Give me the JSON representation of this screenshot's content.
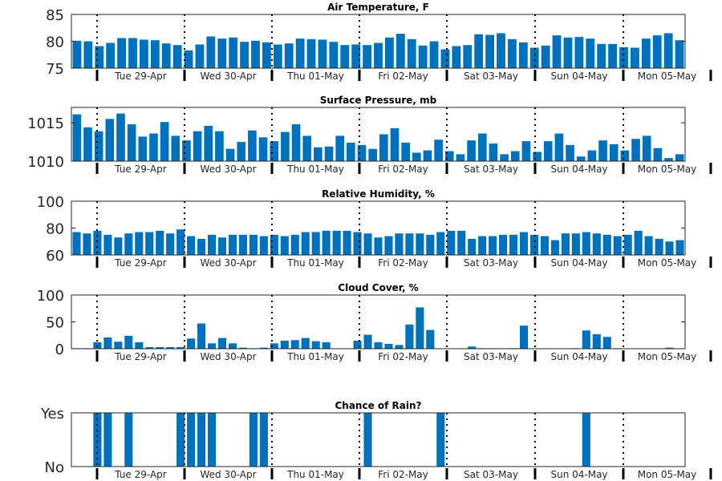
{
  "chart_data": [
    {
      "type": "bar",
      "title": "Air Temperature, F",
      "ylim": [
        75,
        85
      ],
      "yticks": [
        75,
        80,
        85
      ],
      "ytick_labels": [
        "75",
        "80",
        "85"
      ],
      "xtick_labels": [
        "Tue 29-Apr",
        "Wed 30-Apr",
        "Thu 01-May",
        "Fri 02-May",
        "Sat 03-May",
        "Sun 04-May",
        "Mon 05-May"
      ],
      "values": [
        80.1,
        80.0,
        79.1,
        79.7,
        80.6,
        80.6,
        80.3,
        80.2,
        79.6,
        79.3,
        78.3,
        79.4,
        80.9,
        80.5,
        80.7,
        79.9,
        80.1,
        79.8,
        79.4,
        79.6,
        80.5,
        80.4,
        80.3,
        79.9,
        79.3,
        79.4,
        79.3,
        79.7,
        80.7,
        81.4,
        80.4,
        79.2,
        80.0,
        78.5,
        79.1,
        79.3,
        81.3,
        81.2,
        81.5,
        80.4,
        79.8,
        78.8,
        79.2,
        81.1,
        80.7,
        80.8,
        80.5,
        79.5,
        79.5,
        78.9,
        78.8,
        80.5,
        81.1,
        81.5,
        80.2
      ],
      "grid": false
    },
    {
      "type": "bar",
      "title": "Surface Pressure, mb",
      "ylim": [
        1010,
        1017
      ],
      "yticks": [
        1010,
        1015
      ],
      "ytick_labels": [
        "1010",
        "1015"
      ],
      "xtick_labels": [
        "Tue 29-Apr",
        "Wed 30-Apr",
        "Thu 01-May",
        "Fri 02-May",
        "Sat 03-May",
        "Sun 04-May",
        "Mon 05-May"
      ],
      "values": [
        1016.1,
        1014.4,
        1013.9,
        1015.5,
        1016.2,
        1014.8,
        1013.2,
        1013.6,
        1015.1,
        1013.3,
        1012.7,
        1013.9,
        1014.6,
        1013.9,
        1011.6,
        1012.5,
        1014.0,
        1013.1,
        1012.6,
        1013.8,
        1014.8,
        1013.3,
        1011.8,
        1011.9,
        1013.3,
        1012.4,
        1012.1,
        1011.6,
        1013.5,
        1014.3,
        1012.4,
        1011.1,
        1011.4,
        1012.8,
        1011.3,
        1010.9,
        1012.7,
        1013.6,
        1012.3,
        1010.9,
        1011.3,
        1012.6,
        1011.2,
        1012.6,
        1013.6,
        1012.1,
        1010.6,
        1011.4,
        1012.7,
        1012.2,
        1011.4,
        1012.9,
        1013.3,
        1011.7,
        1010.4,
        1010.9
      ],
      "grid": false
    },
    {
      "type": "bar",
      "title": "Relative Humidity, %",
      "ylim": [
        60,
        100
      ],
      "yticks": [
        60,
        80,
        100
      ],
      "ytick_labels": [
        "60",
        "80",
        "100"
      ],
      "xtick_labels": [
        "Tue 29-Apr",
        "Wed 30-Apr",
        "Thu 01-May",
        "Fri 02-May",
        "Sat 03-May",
        "Sun 04-May",
        "Mon 05-May"
      ],
      "values": [
        77,
        76,
        78,
        75,
        73,
        76,
        77,
        77,
        78,
        76,
        79,
        74,
        72,
        75,
        73,
        75,
        75,
        75,
        74,
        75,
        74,
        75,
        77,
        77,
        78,
        78,
        78,
        77,
        76,
        73,
        74,
        76,
        76,
        76,
        75,
        77,
        78,
        78,
        72,
        74,
        74,
        75,
        75,
        77,
        75,
        74,
        71,
        76,
        76,
        77,
        76,
        75,
        74,
        75,
        78,
        74,
        72,
        70,
        71
      ],
      "grid": false
    },
    {
      "type": "bar",
      "title": "Cloud Cover, %",
      "ylim": [
        0,
        100
      ],
      "yticks": [
        0,
        50,
        100
      ],
      "ytick_labels": [
        "0",
        "50",
        "100"
      ],
      "xtick_labels": [
        "Tue 29-Apr",
        "Wed 30-Apr",
        "Thu 01-May",
        "Fri 02-May",
        "Sat 03-May",
        "Sun 04-May",
        "Mon 05-May"
      ],
      "values": [
        1,
        1,
        12,
        21,
        13,
        24,
        12,
        3,
        3,
        3,
        3,
        19,
        47,
        10,
        20,
        10,
        2,
        1,
        2,
        10,
        15,
        16,
        20,
        14,
        12,
        0,
        0,
        15,
        26,
        12,
        9,
        7,
        45,
        77,
        35,
        0,
        0,
        0,
        4,
        1,
        1,
        0,
        1,
        43,
        0,
        0,
        0,
        0,
        1,
        34,
        27,
        22,
        1,
        0,
        0,
        0,
        0,
        2,
        0
      ],
      "grid": false
    },
    {
      "type": "bar",
      "title": "Chance of Rain?",
      "ylim": [
        0,
        1
      ],
      "yticks": [
        0,
        1
      ],
      "ytick_labels": [
        "No",
        "Yes"
      ],
      "xtick_labels": [
        "Tue 29-Apr",
        "Wed 30-Apr",
        "Thu 01-May",
        "Fri 02-May",
        "Sat 03-May",
        "Sun 04-May",
        "Mon 05-May"
      ],
      "values": [
        0,
        0,
        1,
        1,
        0,
        1,
        0,
        0,
        0,
        0,
        1,
        1,
        1,
        1,
        0,
        0,
        0,
        1,
        1,
        0,
        0,
        0,
        0,
        0,
        0,
        0,
        0,
        0,
        1,
        0,
        0,
        0,
        0,
        0,
        0,
        1,
        0,
        0,
        0,
        0,
        0,
        0,
        0,
        0,
        0,
        0,
        0,
        0,
        0,
        1,
        0,
        0,
        0,
        0,
        0,
        0,
        0,
        0,
        0
      ],
      "grid": false
    }
  ]
}
